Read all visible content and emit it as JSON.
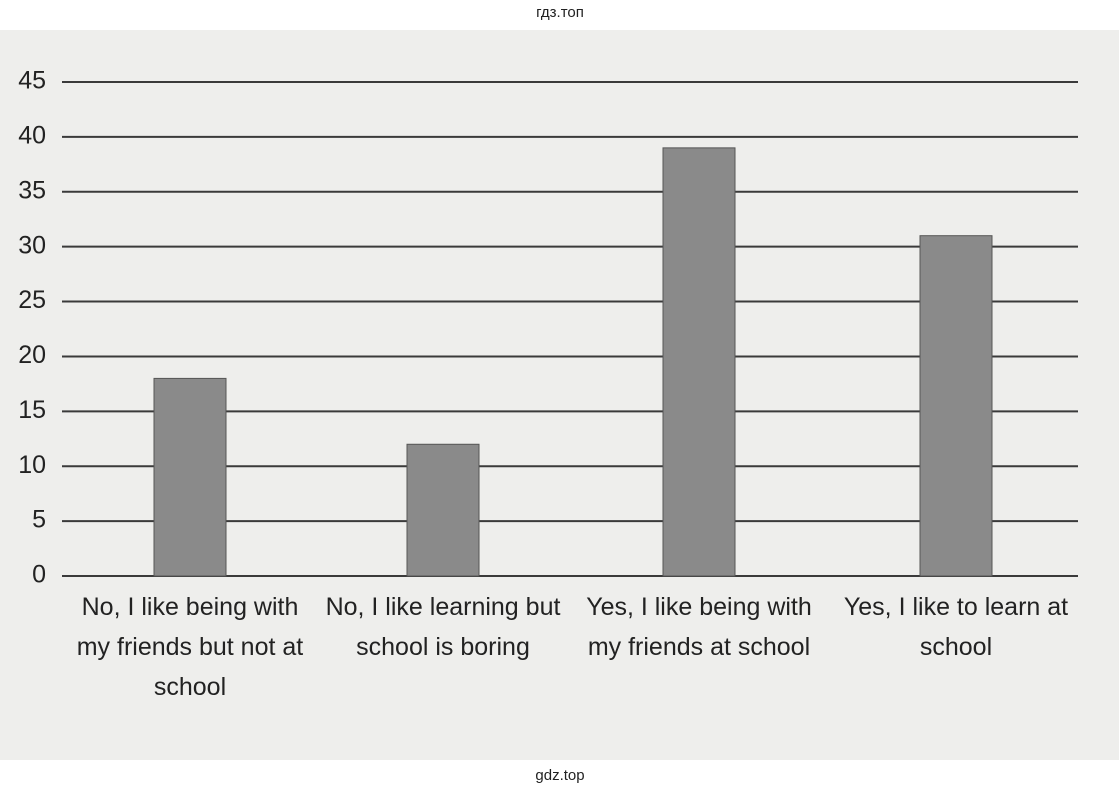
{
  "chart_data": {
    "type": "bar",
    "watermark_top": "гдз.топ",
    "watermark_bottom": "gdz.top",
    "categories": [
      "No, I like being with my friends but not at school",
      "No, I like learning but school is boring",
      "Yes, I like being with my friends at school",
      "Yes, I like to learn at school"
    ],
    "values": [
      18,
      12,
      39,
      31
    ],
    "color": "#8a8a8a",
    "ylim": [
      0,
      45
    ],
    "yticks": [
      0,
      5,
      10,
      15,
      20,
      25,
      30,
      35,
      40,
      45
    ],
    "grid": true
  }
}
